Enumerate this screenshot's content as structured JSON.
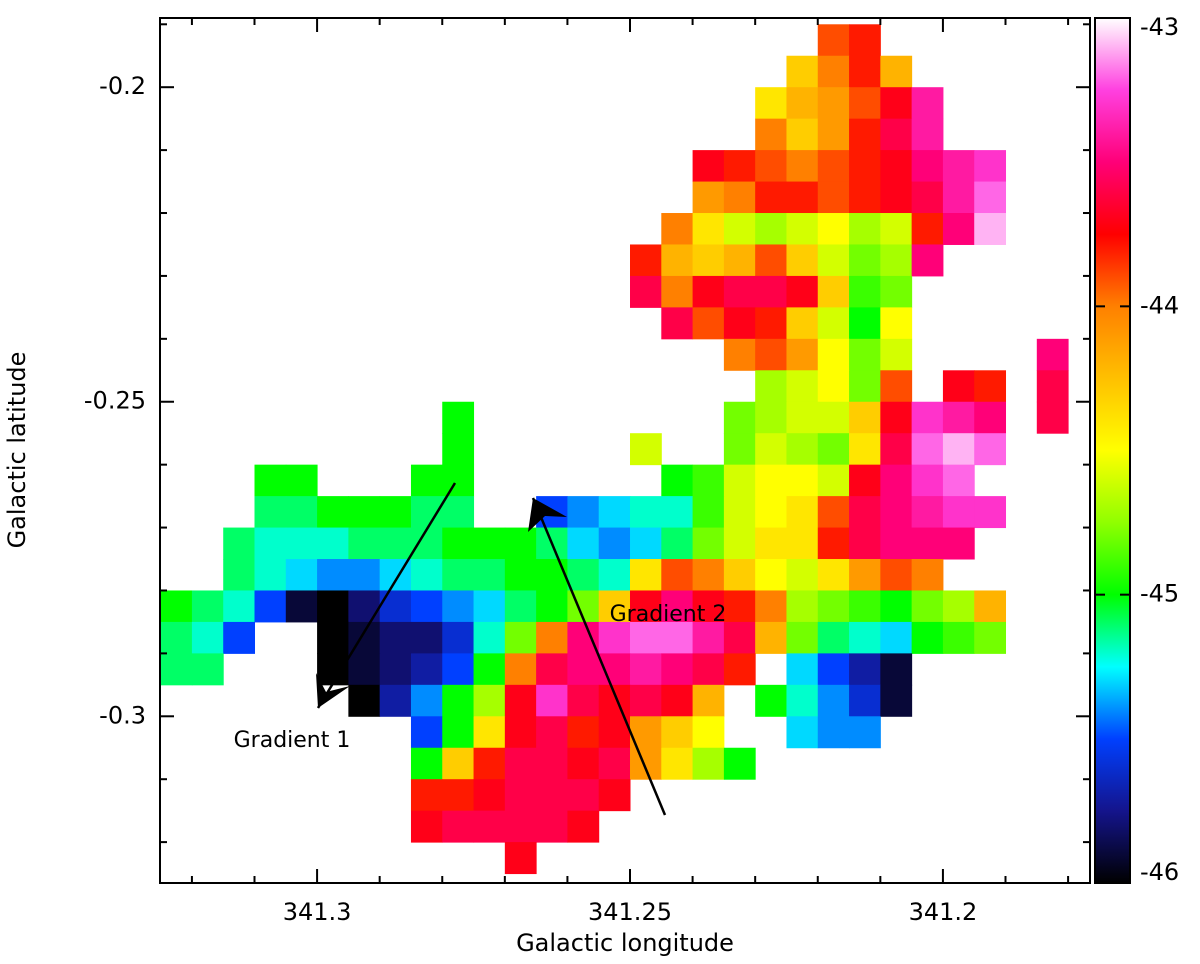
{
  "chart_data": {
    "type": "heatmap",
    "xlabel": "Galactic longitude",
    "ylabel": "Galactic latitude",
    "annotations": [
      "Gradient 1",
      "Gradient 2"
    ],
    "xlim": [
      341.3251,
      341.1765
    ],
    "ylim": [
      -0.189,
      -0.3265
    ],
    "xticks": [
      341.3,
      341.25,
      341.2
    ],
    "yticks": [
      -0.2,
      -0.25,
      -0.3
    ],
    "xminorticks": [
      341.32,
      341.31,
      341.29,
      341.28,
      341.27,
      341.26,
      341.24,
      341.23,
      341.22,
      341.21,
      341.19,
      341.18
    ],
    "yminorticks": [
      -0.19,
      -0.21,
      -0.22,
      -0.23,
      -0.24,
      -0.26,
      -0.27,
      -0.28,
      -0.29,
      -0.31,
      -0.32
    ],
    "zlim": [
      -46,
      -43
    ],
    "zticks": [
      -46,
      -45,
      -44,
      -43
    ],
    "colormap": [
      "#000000",
      "#14148c",
      "#0040ff",
      "#00ffff",
      "#00ff00",
      "#90ff00",
      "#ffff00",
      "#ffc000",
      "#ff8000",
      "#ff0000",
      "#ff0078",
      "#ff40e0",
      "#ffffff"
    ],
    "x": [
      341.3225,
      341.3175,
      341.3125,
      341.3075,
      341.3025,
      341.2975,
      341.2925,
      341.2875,
      341.2825,
      341.2775,
      341.2725,
      341.2675,
      341.2625,
      341.2575,
      341.2525,
      341.2475,
      341.2425,
      341.2375,
      341.2325,
      341.2275,
      341.2225,
      341.2175,
      341.2125,
      341.2075,
      341.2025,
      341.1975,
      341.1925,
      341.1875,
      341.1825
    ],
    "y": [
      -0.1925,
      -0.1975,
      -0.2025,
      -0.2075,
      -0.2125,
      -0.2175,
      -0.2225,
      -0.2275,
      -0.2325,
      -0.2375,
      -0.2425,
      -0.2475,
      -0.2525,
      -0.2575,
      -0.2625,
      -0.2675,
      -0.2725,
      -0.2775,
      -0.2825,
      -0.2875,
      -0.2925,
      -0.2975,
      -0.3025,
      -0.3075,
      -0.3125,
      -0.3175,
      -0.3225
    ],
    "z": [
      [
        null,
        null,
        null,
        null,
        null,
        null,
        null,
        null,
        null,
        null,
        null,
        null,
        null,
        null,
        null,
        null,
        null,
        null,
        null,
        null,
        null,
        -43.9,
        -43.8,
        null,
        null,
        null,
        null,
        null,
        null
      ],
      [
        null,
        null,
        null,
        null,
        null,
        null,
        null,
        null,
        null,
        null,
        null,
        null,
        null,
        null,
        null,
        null,
        null,
        null,
        null,
        null,
        -44.3,
        -44.0,
        -43.8,
        -44.2,
        null,
        null,
        null,
        null,
        null
      ],
      [
        null,
        null,
        null,
        null,
        null,
        null,
        null,
        null,
        null,
        null,
        null,
        null,
        null,
        null,
        null,
        null,
        null,
        null,
        null,
        -44.4,
        -44.2,
        -44.1,
        -43.9,
        -43.7,
        -43.4,
        null,
        null,
        null,
        null
      ],
      [
        null,
        null,
        null,
        null,
        null,
        null,
        null,
        null,
        null,
        null,
        null,
        null,
        null,
        null,
        null,
        null,
        null,
        null,
        null,
        -44.0,
        -44.3,
        -44.1,
        -43.8,
        -43.6,
        -43.4,
        null,
        null,
        null,
        null
      ],
      [
        null,
        null,
        null,
        null,
        null,
        null,
        null,
        null,
        null,
        null,
        null,
        null,
        null,
        null,
        null,
        null,
        null,
        -43.7,
        -43.8,
        -43.9,
        -44.0,
        -43.9,
        -43.8,
        -43.7,
        -43.5,
        -43.4,
        -43.3,
        null,
        null
      ],
      [
        null,
        null,
        null,
        null,
        null,
        null,
        null,
        null,
        null,
        null,
        null,
        null,
        null,
        null,
        null,
        null,
        null,
        -44.1,
        -44.0,
        -43.8,
        -43.8,
        -43.9,
        -43.8,
        -43.7,
        -43.6,
        -43.4,
        -43.2,
        null,
        null
      ],
      [
        null,
        null,
        null,
        null,
        null,
        null,
        null,
        null,
        null,
        null,
        null,
        null,
        null,
        null,
        null,
        null,
        -44.0,
        -44.4,
        -44.6,
        -44.7,
        -44.6,
        -44.5,
        -44.7,
        -44.6,
        -43.8,
        -43.5,
        -43.1,
        null,
        null
      ],
      [
        null,
        null,
        null,
        null,
        null,
        null,
        null,
        null,
        null,
        null,
        null,
        null,
        null,
        null,
        null,
        -43.8,
        -44.2,
        -44.3,
        -44.2,
        -43.9,
        -44.3,
        -44.6,
        -44.8,
        -44.7,
        -43.5,
        null,
        null,
        null,
        null
      ],
      [
        null,
        null,
        null,
        null,
        null,
        null,
        null,
        null,
        null,
        null,
        null,
        null,
        null,
        null,
        null,
        -43.6,
        -44.0,
        -43.7,
        -43.6,
        -43.6,
        -43.7,
        -44.3,
        -44.9,
        -44.8,
        null,
        null,
        null,
        null,
        null
      ],
      [
        null,
        null,
        null,
        null,
        null,
        null,
        null,
        null,
        null,
        null,
        null,
        null,
        null,
        null,
        null,
        null,
        -43.6,
        -43.9,
        -43.7,
        -43.8,
        -44.3,
        -44.6,
        -45.0,
        -44.5,
        null,
        null,
        null,
        null,
        null
      ],
      [
        null,
        null,
        null,
        null,
        null,
        null,
        null,
        null,
        null,
        null,
        null,
        null,
        null,
        null,
        null,
        null,
        null,
        null,
        -44.0,
        -43.9,
        -44.1,
        -44.5,
        -44.8,
        -44.6,
        null,
        null,
        null,
        null,
        -43.5
      ],
      [
        null,
        null,
        null,
        null,
        null,
        null,
        null,
        null,
        null,
        null,
        null,
        null,
        null,
        null,
        null,
        null,
        null,
        null,
        null,
        -44.7,
        -44.6,
        -44.5,
        -44.8,
        -43.9,
        null,
        -43.7,
        -43.8,
        null,
        -43.6
      ],
      [
        null,
        null,
        null,
        null,
        null,
        null,
        null,
        null,
        null,
        -45.0,
        null,
        null,
        null,
        null,
        null,
        null,
        null,
        null,
        -44.8,
        -44.7,
        -44.6,
        -44.6,
        -44.3,
        -43.7,
        -43.3,
        -43.4,
        -43.5,
        null,
        -43.6
      ],
      [
        null,
        null,
        null,
        null,
        null,
        null,
        null,
        null,
        null,
        -45.0,
        null,
        null,
        null,
        null,
        null,
        -44.6,
        null,
        null,
        -44.8,
        -44.6,
        -44.7,
        -44.8,
        -44.4,
        -43.6,
        -43.2,
        -43.1,
        -43.2,
        null,
        null
      ],
      [
        null,
        null,
        null,
        -45.0,
        -45.0,
        null,
        null,
        null,
        -45.0,
        -45.0,
        null,
        null,
        null,
        null,
        null,
        null,
        -45.0,
        -44.9,
        -44.6,
        -44.5,
        -44.5,
        -44.6,
        -43.7,
        -43.5,
        -43.3,
        -43.2,
        null,
        null,
        null
      ],
      [
        null,
        null,
        null,
        -45.1,
        -45.1,
        -45.0,
        -45.0,
        -45.0,
        -45.1,
        -45.1,
        null,
        null,
        -45.5,
        -45.4,
        -45.3,
        -45.2,
        -45.2,
        -44.9,
        -44.6,
        -44.5,
        -44.4,
        -43.9,
        -43.6,
        -43.5,
        -43.4,
        -43.3,
        -43.3,
        null,
        null
      ],
      [
        null,
        null,
        -45.1,
        -45.2,
        -45.2,
        -45.2,
        -45.1,
        -45.1,
        -45.1,
        -45.0,
        -45.0,
        -45.0,
        -45.1,
        -45.3,
        -45.4,
        -45.3,
        -45.1,
        -44.8,
        -44.6,
        -44.4,
        -44.4,
        -43.8,
        -43.6,
        -43.5,
        -43.5,
        -43.5,
        null,
        null,
        null
      ],
      [
        null,
        null,
        -45.1,
        -45.2,
        -45.3,
        -45.4,
        -45.4,
        -45.3,
        -45.2,
        -45.1,
        -45.1,
        -45.0,
        -45.0,
        -45.1,
        -45.2,
        -44.4,
        -43.9,
        -44.0,
        -44.3,
        -44.5,
        -44.6,
        -44.4,
        -44.1,
        -43.9,
        -44.0,
        null,
        null,
        null,
        null
      ],
      [
        -45.0,
        -45.1,
        -45.2,
        -45.5,
        -45.9,
        -46.0,
        -45.8,
        -45.6,
        -45.5,
        -45.4,
        -45.3,
        -45.1,
        -45.0,
        -44.8,
        -44.3,
        -43.7,
        -43.5,
        -43.7,
        -43.8,
        -44.0,
        -44.7,
        -44.8,
        -44.9,
        -45.0,
        -44.8,
        -44.7,
        -44.2,
        null,
        null
      ],
      [
        -45.1,
        -45.2,
        -45.5,
        null,
        null,
        -46.0,
        -45.9,
        -45.8,
        -45.8,
        -45.6,
        -45.2,
        -44.8,
        -44.0,
        -43.5,
        -43.3,
        -43.2,
        -43.2,
        -43.4,
        -43.6,
        -44.2,
        -44.8,
        -45.1,
        -45.2,
        -45.3,
        -45.0,
        -44.9,
        -44.8,
        null,
        null
      ],
      [
        -45.1,
        -45.1,
        null,
        null,
        null,
        -46.0,
        -45.9,
        -45.8,
        -45.7,
        -45.5,
        -45.0,
        -44.0,
        -43.6,
        -43.5,
        -43.5,
        -43.4,
        -43.5,
        -43.6,
        -43.8,
        null,
        -45.3,
        -45.5,
        -45.7,
        -45.9,
        null,
        null,
        null,
        null,
        null
      ],
      [
        null,
        null,
        null,
        null,
        null,
        null,
        -46.0,
        -45.7,
        -45.4,
        -45.0,
        -44.7,
        -43.7,
        -43.3,
        -43.6,
        -43.7,
        -43.6,
        -43.7,
        -44.2,
        null,
        -45.0,
        -45.2,
        -45.4,
        -45.6,
        -45.9,
        null,
        null,
        null,
        null,
        null
      ],
      [
        null,
        null,
        null,
        null,
        null,
        null,
        null,
        null,
        -45.5,
        -45.0,
        -44.4,
        -43.7,
        -43.6,
        -43.8,
        -43.7,
        -44.1,
        -44.3,
        -44.5,
        null,
        null,
        -45.3,
        -45.4,
        -45.4,
        null,
        null,
        null,
        null,
        null,
        null
      ],
      [
        null,
        null,
        null,
        null,
        null,
        null,
        null,
        null,
        -45.0,
        -44.3,
        -43.8,
        -43.6,
        -43.6,
        -43.7,
        -43.6,
        -44.1,
        -44.4,
        -44.7,
        -45.0,
        null,
        null,
        null,
        null,
        null,
        null,
        null,
        null,
        null,
        null
      ],
      [
        null,
        null,
        null,
        null,
        null,
        null,
        null,
        null,
        -43.8,
        -43.8,
        -43.7,
        -43.6,
        -43.6,
        -43.6,
        -43.7,
        null,
        null,
        null,
        null,
        null,
        null,
        null,
        null,
        null,
        null,
        null,
        null,
        null,
        null
      ],
      [
        null,
        null,
        null,
        null,
        null,
        null,
        null,
        null,
        -43.7,
        -43.6,
        -43.6,
        -43.6,
        -43.6,
        -43.7,
        null,
        null,
        null,
        null,
        null,
        null,
        null,
        null,
        null,
        null,
        null,
        null,
        null,
        null,
        null
      ],
      [
        null,
        null,
        null,
        null,
        null,
        null,
        null,
        null,
        null,
        null,
        null,
        -43.7,
        null,
        null,
        null,
        null,
        null,
        null,
        null,
        null,
        null,
        null,
        null,
        null,
        null,
        null,
        null,
        null,
        null
      ]
    ]
  }
}
